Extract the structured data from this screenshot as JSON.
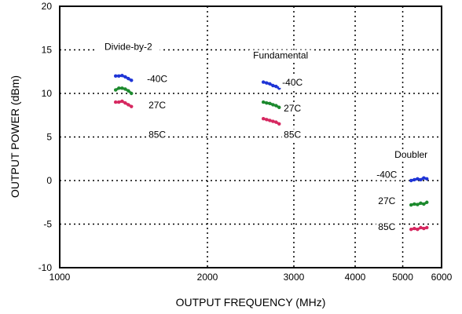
{
  "chart_data": {
    "type": "scatter",
    "title": "",
    "xlabel": "OUTPUT FREQUENCY (MHz)",
    "ylabel": "OUTPUT POWER (dBm)",
    "x_scale": "log",
    "xlim": [
      1000,
      6000
    ],
    "ylim": [
      -10,
      20
    ],
    "x_ticks": [
      {
        "value": 1000,
        "label": "1000"
      },
      {
        "value": 2000,
        "label": "2000"
      },
      {
        "value": 3000,
        "label": "3000"
      },
      {
        "value": 4000,
        "label": "4000"
      },
      {
        "value": 5000,
        "label": "5000"
      },
      {
        "value": 6000,
        "label": "6000"
      }
    ],
    "y_ticks": [
      {
        "value": -10,
        "label": "-10"
      },
      {
        "value": -5,
        "label": "-5"
      },
      {
        "value": 0,
        "label": "0"
      },
      {
        "value": 5,
        "label": "5"
      },
      {
        "value": 10,
        "label": "10"
      },
      {
        "value": 15,
        "label": "15"
      },
      {
        "value": 20,
        "label": "20"
      }
    ],
    "grid": true,
    "groups": [
      {
        "name": "Divide-by-2",
        "label_pos": {
          "x": 1380,
          "y": 15
        }
      },
      {
        "name": "Fundamental",
        "label_pos": {
          "x": 2820,
          "y": 14
        }
      },
      {
        "name": "Doubler",
        "label_pos": {
          "x": 5200,
          "y": 2.6
        }
      }
    ],
    "temperature_labels": [
      {
        "text": "-40C",
        "x": 1580,
        "y": 11.4
      },
      {
        "text": "27C",
        "x": 1580,
        "y": 8.4
      },
      {
        "text": "85C",
        "x": 1580,
        "y": 5.0
      },
      {
        "text": "-40C",
        "x": 2980,
        "y": 11.0
      },
      {
        "text": "27C",
        "x": 2980,
        "y": 8.0
      },
      {
        "text": "85C",
        "x": 2980,
        "y": 5.0
      },
      {
        "text": "-40C",
        "x": 4640,
        "y": 0.4
      },
      {
        "text": "27C",
        "x": 4640,
        "y": -2.6
      },
      {
        "text": "85C",
        "x": 4640,
        "y": -5.6
      }
    ],
    "series": [
      {
        "temp": "-40C",
        "group": "Divide-by-2",
        "color": "#1f35d6",
        "x": [
          1300,
          1320,
          1340,
          1360,
          1380,
          1400
        ],
        "y": [
          12.0,
          12.0,
          12.05,
          11.9,
          11.7,
          11.5
        ]
      },
      {
        "temp": "27C",
        "group": "Divide-by-2",
        "color": "#1d8a2e",
        "x": [
          1300,
          1320,
          1340,
          1360,
          1380,
          1400
        ],
        "y": [
          10.4,
          10.6,
          10.6,
          10.5,
          10.3,
          10.0
        ]
      },
      {
        "temp": "85C",
        "group": "Divide-by-2",
        "color": "#d62860",
        "x": [
          1300,
          1320,
          1340,
          1360,
          1380,
          1400
        ],
        "y": [
          9.0,
          9.0,
          9.1,
          8.9,
          8.7,
          8.5
        ]
      },
      {
        "temp": "-40C",
        "group": "Fundamental",
        "color": "#1f35d6",
        "x": [
          2600,
          2640,
          2680,
          2720,
          2760,
          2800
        ],
        "y": [
          11.3,
          11.2,
          11.1,
          10.9,
          10.8,
          10.6
        ]
      },
      {
        "temp": "27C",
        "group": "Fundamental",
        "color": "#1d8a2e",
        "x": [
          2600,
          2640,
          2680,
          2720,
          2760,
          2800
        ],
        "y": [
          9.0,
          8.9,
          8.85,
          8.7,
          8.6,
          8.4
        ]
      },
      {
        "temp": "85C",
        "group": "Fundamental",
        "color": "#d62860",
        "x": [
          2600,
          2640,
          2680,
          2720,
          2760,
          2800
        ],
        "y": [
          7.1,
          7.0,
          6.9,
          6.8,
          6.7,
          6.5
        ]
      },
      {
        "temp": "-40C",
        "group": "Doubler",
        "color": "#1f35d6",
        "x": [
          5200,
          5280,
          5360,
          5440,
          5520,
          5600
        ],
        "y": [
          0.0,
          0.1,
          0.2,
          0.1,
          0.3,
          0.2
        ]
      },
      {
        "temp": "27C",
        "group": "Doubler",
        "color": "#1d8a2e",
        "x": [
          5200,
          5280,
          5360,
          5440,
          5520,
          5600
        ],
        "y": [
          -2.8,
          -2.7,
          -2.75,
          -2.6,
          -2.7,
          -2.5
        ]
      },
      {
        "temp": "85C",
        "group": "Doubler",
        "color": "#d62860",
        "x": [
          5200,
          5280,
          5360,
          5440,
          5520,
          5600
        ],
        "y": [
          -5.6,
          -5.5,
          -5.6,
          -5.4,
          -5.5,
          -5.4
        ]
      }
    ]
  }
}
